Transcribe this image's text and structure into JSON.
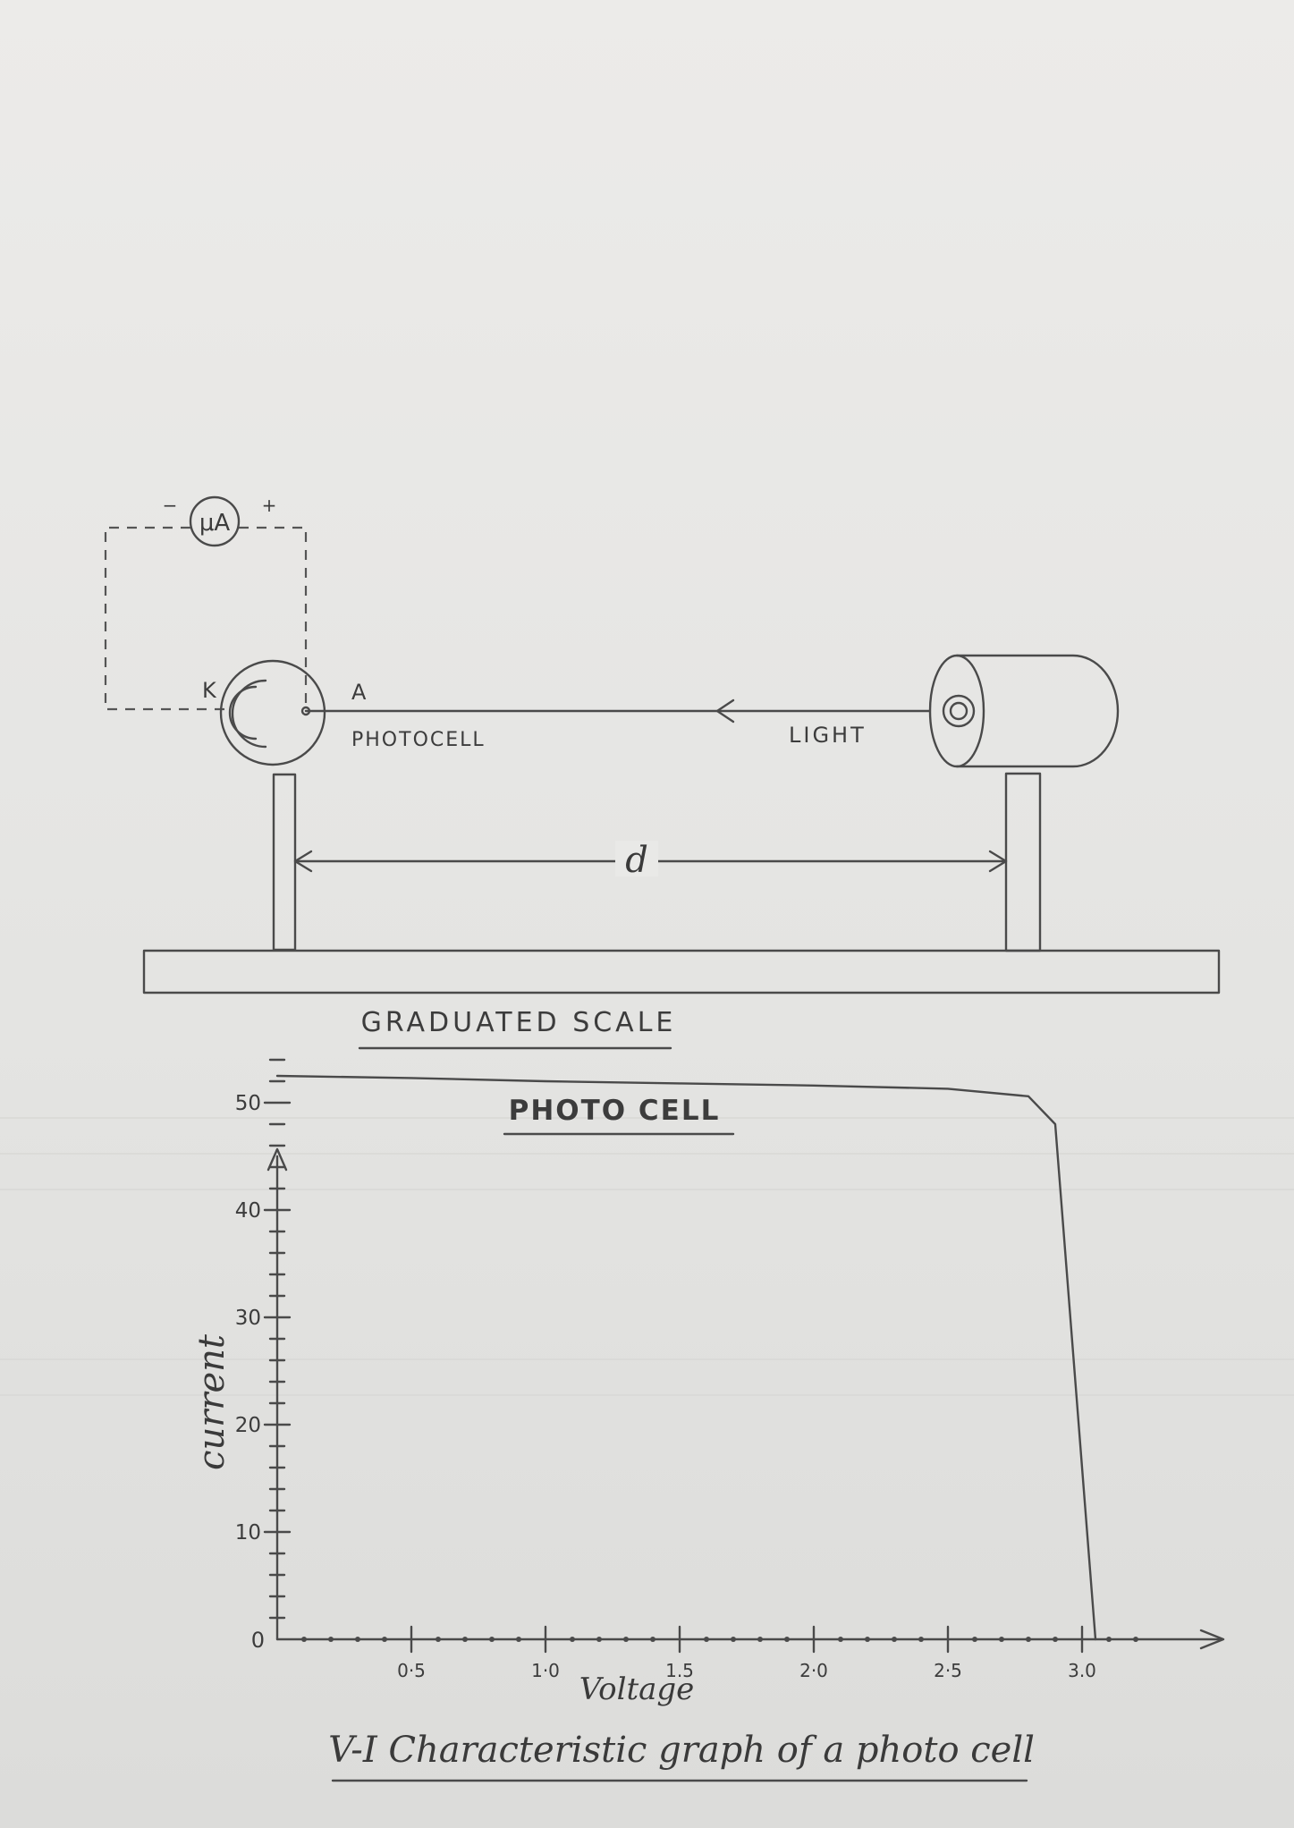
{
  "setup": {
    "ammeter_label": "μA",
    "ammeter_minus": "−",
    "ammeter_plus": "+",
    "cathode_label": "K",
    "anode_label": "A",
    "photocell_label": "PHOTOCELL",
    "light_label": "LIGHT",
    "distance_label": "d",
    "scale_label": "GRADUATED SCALE"
  },
  "section_title": "PHOTO CELL",
  "graph_title": "V-I Characteristic graph of a photo cell",
  "chart_data": {
    "type": "line",
    "xlabel": "Voltage",
    "ylabel": "current",
    "x_ticks": [
      "0·5",
      "1·0",
      "1.5",
      "2·0",
      "2·5",
      "3.0"
    ],
    "y_ticks": [
      "10",
      "20",
      "30",
      "40",
      "50"
    ],
    "origin_label": "0",
    "xlim": [
      0,
      3.4
    ],
    "ylim": [
      0,
      57
    ],
    "series": [
      {
        "x": [
          0,
          0.5,
          1.0,
          1.5,
          2.0,
          2.5,
          2.8,
          2.9,
          3.05
        ],
        "y": [
          52.5,
          52.3,
          52,
          51.8,
          51.6,
          51.3,
          50.6,
          48,
          0
        ]
      }
    ]
  }
}
